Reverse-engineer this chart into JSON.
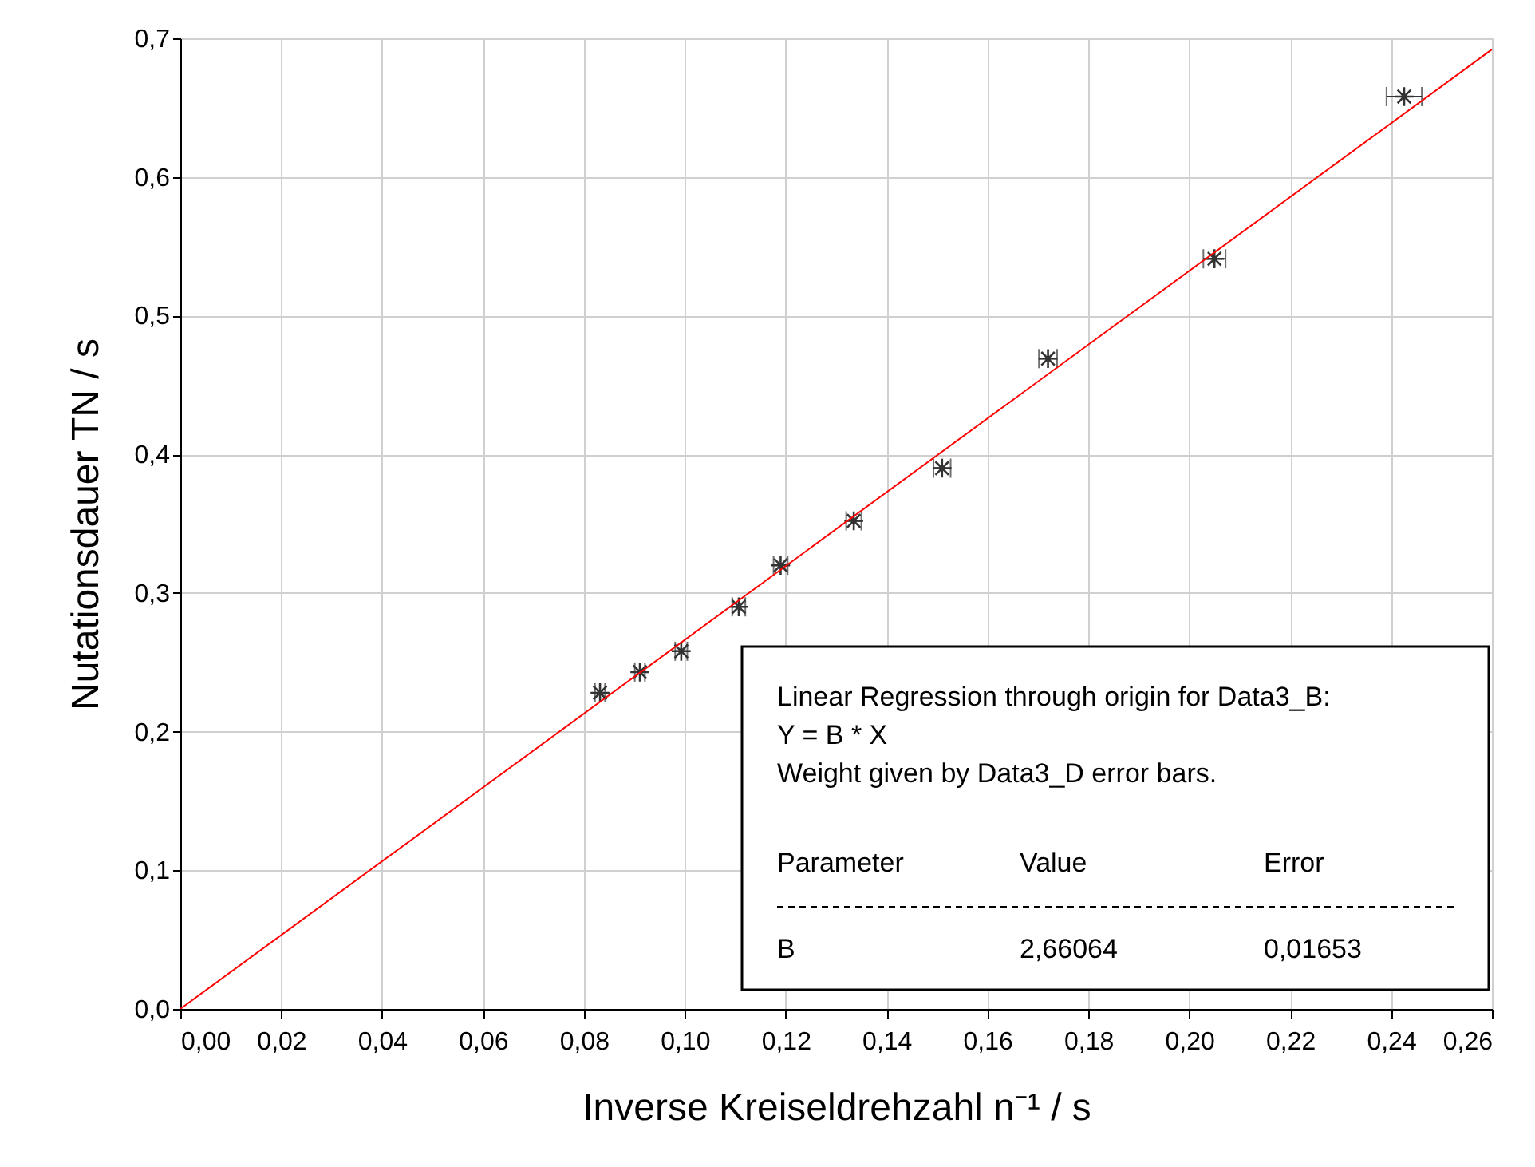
{
  "chart_data": {
    "type": "scatter",
    "xlabel": "Inverse Kreiseldrehzahl n⁻¹ / s",
    "ylabel": "Nutationsdauer TN / s",
    "xlim": [
      0,
      0.26
    ],
    "ylim": [
      0,
      0.7
    ],
    "xticks": [
      {
        "value": 0,
        "label": "0,00"
      },
      {
        "value": 0.02,
        "label": "0,02"
      },
      {
        "value": 0.04,
        "label": "0,04"
      },
      {
        "value": 0.06,
        "label": "0,06"
      },
      {
        "value": 0.08,
        "label": "0,08"
      },
      {
        "value": 0.1,
        "label": "0,10"
      },
      {
        "value": 0.12,
        "label": "0,12"
      },
      {
        "value": 0.14,
        "label": "0,14"
      },
      {
        "value": 0.16,
        "label": "0,16"
      },
      {
        "value": 0.18,
        "label": "0,18"
      },
      {
        "value": 0.2,
        "label": "0,20"
      },
      {
        "value": 0.22,
        "label": "0,22"
      },
      {
        "value": 0.24,
        "label": "0,24"
      },
      {
        "value": 0.26,
        "label": "0,26"
      }
    ],
    "yticks": [
      {
        "value": 0,
        "label": "0,0"
      },
      {
        "value": 0.1,
        "label": "0,1"
      },
      {
        "value": 0.2,
        "label": "0,2"
      },
      {
        "value": 0.3,
        "label": "0,3"
      },
      {
        "value": 0.4,
        "label": "0,4"
      },
      {
        "value": 0.5,
        "label": "0,5"
      },
      {
        "value": 0.6,
        "label": "0,6"
      },
      {
        "value": 0.7,
        "label": "0,7"
      }
    ],
    "grid": true,
    "marker": "cross",
    "series": [
      {
        "color": "#333333",
        "x": [
          0.0832,
          0.0911,
          0.0993,
          0.1107,
          0.119,
          0.1335,
          0.151,
          0.172,
          0.205,
          0.2426
        ],
        "values": [
          0.228,
          0.243,
          0.258,
          0.29,
          0.32,
          0.352,
          0.39,
          0.469,
          0.541,
          0.658
        ],
        "xerrors": [
          0.001,
          0.001,
          0.0012,
          0.0013,
          0.0014,
          0.0015,
          0.0017,
          0.0018,
          0.0022,
          0.0035
        ]
      },
      {
        "type": "line",
        "color": "#ff0000",
        "marker": "none",
        "x": [
          0,
          0.26
        ],
        "values": [
          0,
          0.692
        ]
      }
    ],
    "annotations": [
      "Linear Regression through origin for Data3_B:",
      "Y = B * X",
      "Weight given by Data3_D error bars.",
      "Parameter",
      "Value",
      "Error",
      "B",
      "2,66064",
      "0,01653"
    ]
  }
}
